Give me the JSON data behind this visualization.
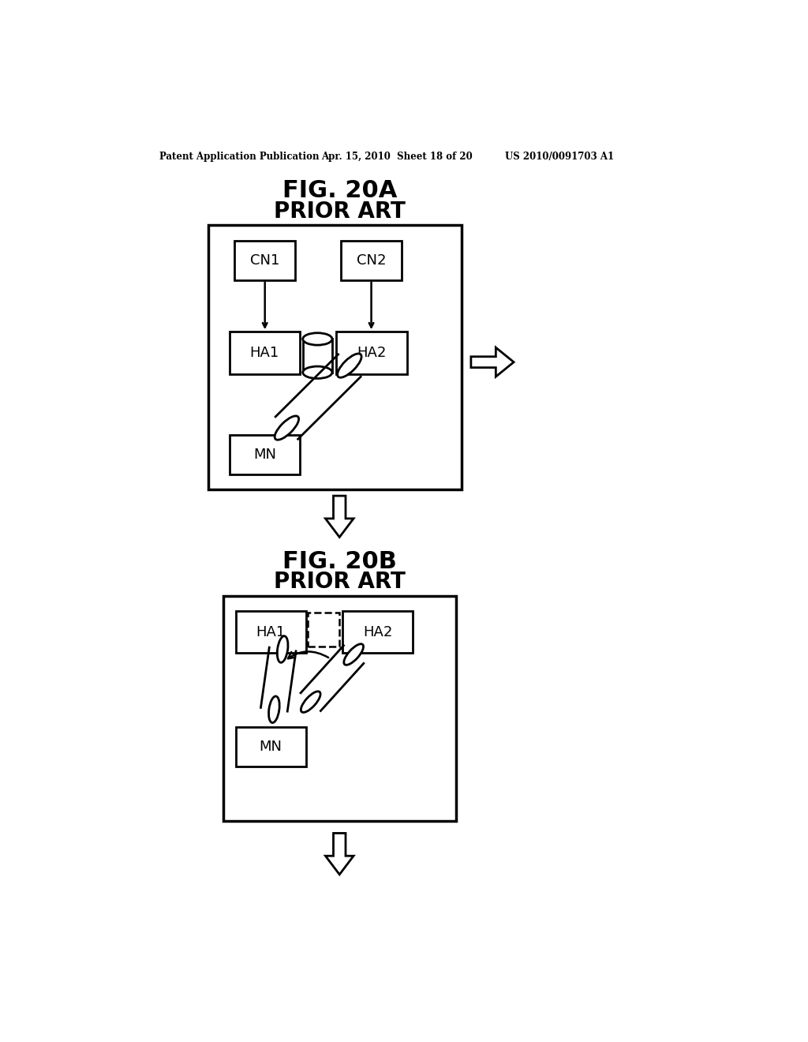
{
  "bg_color": "#ffffff",
  "header_left": "Patent Application Publication",
  "header_mid": "Apr. 15, 2010  Sheet 18 of 20",
  "header_right": "US 2010/0091703 A1",
  "fig20a_title": "FIG. 20A",
  "fig20a_subtitle": "PRIOR ART",
  "fig20b_title": "FIG. 20B",
  "fig20b_subtitle": "PRIOR ART"
}
